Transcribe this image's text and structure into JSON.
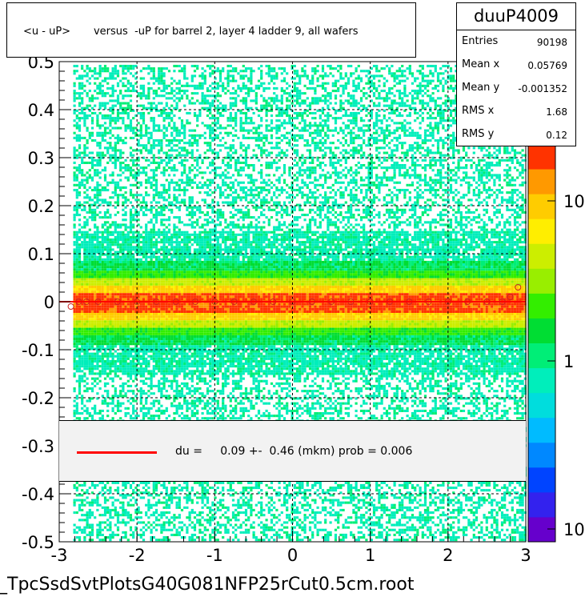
{
  "title": "<u - uP>       versus  -uP for barrel 2, layer 4 ladder 9, all wafers",
  "stats": {
    "name": "duuP4009",
    "rows": [
      {
        "label": "Entries",
        "value": "90198"
      },
      {
        "label": "Mean x",
        "value": "0.05769"
      },
      {
        "label": "Mean y",
        "value": "-0.001352"
      },
      {
        "label": "RMS x",
        "value": "1.68"
      },
      {
        "label": "RMS y",
        "value": "0.12"
      }
    ]
  },
  "fit_legend": {
    "text": "du =     0.09 +-  0.46 (mkm) prob = 0.006",
    "line_color": "#ff0000"
  },
  "footer": "_TpcSsdSvtPlotsG40G081NFP25rCut0.5cm.root",
  "chart_data": {
    "type": "heatmap",
    "title": "<u - uP>       versus  -uP for barrel 2, layer 4 ladder 9, all wafers",
    "xlabel": "",
    "ylabel": "",
    "xlim": [
      -3,
      3
    ],
    "ylim": [
      -0.5,
      0.5
    ],
    "x_ticks": [
      "-3",
      "-2",
      "-1",
      "0",
      "1",
      "2",
      "3"
    ],
    "y_ticks": [
      "-0.5",
      "-0.4",
      "-0.3",
      "-0.2",
      "-0.1",
      "0",
      "0.1",
      "0.2",
      "0.3",
      "0.4",
      "0.5"
    ],
    "grid": true,
    "colorbar": {
      "scale": "log",
      "tick_labels": [
        "10",
        "1",
        "10"
      ],
      "colors": [
        "#6600cc",
        "#3322ee",
        "#0044ff",
        "#0088ff",
        "#00bbff",
        "#00dddd",
        "#00eebb",
        "#00ee77",
        "#00dd33",
        "#33ee00",
        "#99ee00",
        "#ccee00",
        "#ffee00",
        "#ffcc00",
        "#ff9900",
        "#ff3300"
      ]
    },
    "profile_points": {
      "x": [
        -2.85,
        -2.75,
        -2.65,
        -2.5,
        -2.25,
        -2.0,
        -1.75,
        -1.5,
        -1.25,
        -1.0,
        -0.75,
        -0.5,
        -0.25,
        0.0,
        0.25,
        0.5,
        0.75,
        1.0,
        1.25,
        1.5,
        1.75,
        2.0,
        2.25,
        2.5,
        2.7,
        2.8,
        2.9
      ],
      "y": [
        -0.01,
        0.0,
        0.0,
        0.0,
        0.0,
        0.0,
        0.0,
        0.0,
        0.0,
        0.0,
        0.0,
        0.0,
        0.0,
        0.0,
        0.0,
        0.0,
        0.0,
        0.0,
        0.0,
        0.0,
        0.0,
        0.0,
        0.0,
        0.0,
        0.0,
        0.01,
        0.03
      ]
    },
    "fit": {
      "label": "du =     0.09 +-  0.46 (mkm) prob = 0.006",
      "y": 0.0
    }
  }
}
